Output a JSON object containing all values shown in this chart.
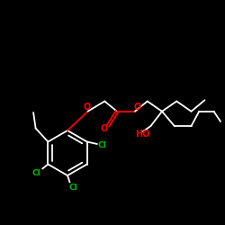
{
  "background_color": "#000000",
  "bond_color": "#ffffff",
  "oxygen_color": "#ff0000",
  "chlorine_color": "#00bb00",
  "figsize": [
    2.5,
    2.5
  ],
  "dpi": 100,
  "xlim": [
    0,
    10
  ],
  "ylim": [
    0,
    10
  ]
}
